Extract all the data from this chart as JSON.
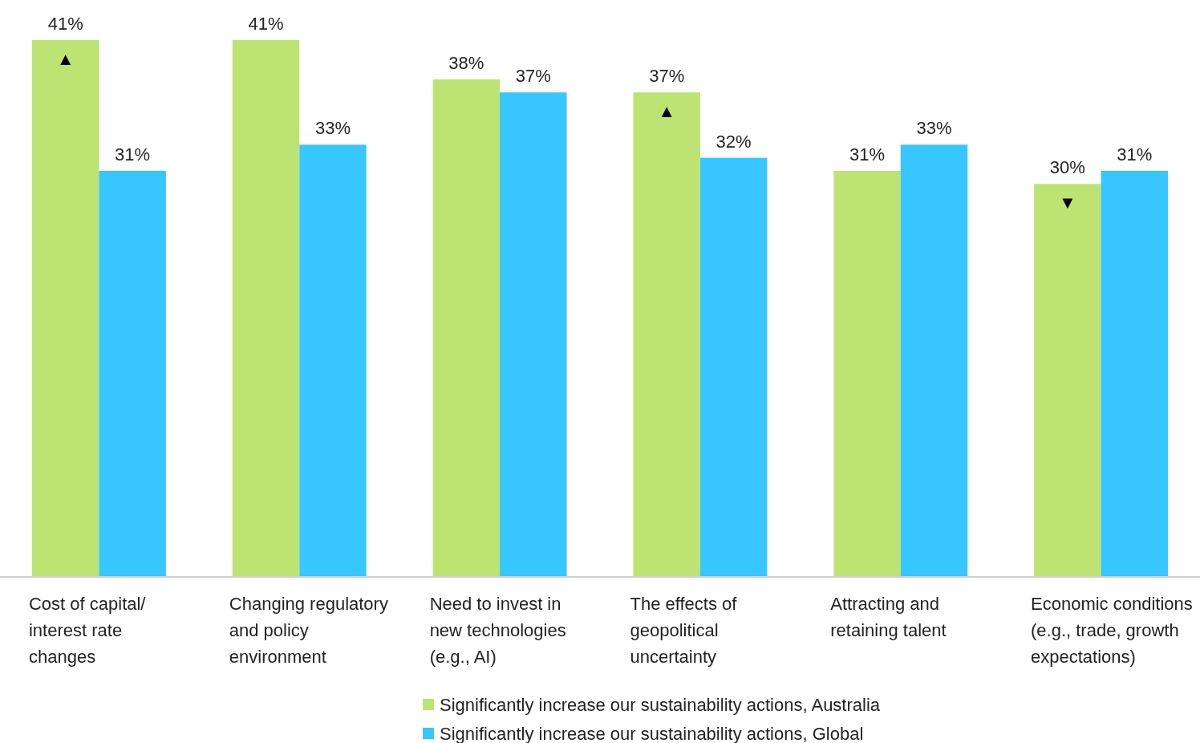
{
  "chart_data": {
    "type": "bar",
    "categories": [
      "Cost of capital/ interest rate changes",
      "Changing regulatory and policy environment",
      "Need to invest in new technologies (e.g., AI)",
      "The effects of geopolitical uncertainty",
      "Attracting and retaining talent",
      "Economic conditions (e.g., trade, growth expectations)"
    ],
    "series": [
      {
        "name": "Significantly increase our sustainability actions, Australia",
        "color": "#bde472",
        "values": [
          41,
          41,
          38,
          37,
          31,
          30
        ],
        "value_labels": [
          "41%",
          "41%",
          "38%",
          "37%",
          "31%",
          "30%"
        ]
      },
      {
        "name": "Significantly increase our sustainability actions, Global",
        "color": "#38c6fe",
        "values": [
          31,
          33,
          37,
          32,
          33,
          31
        ],
        "value_labels": [
          "31%",
          "33%",
          "37%",
          "32%",
          "33%",
          "31%"
        ]
      }
    ],
    "data_labels": true,
    "legend": "bottom",
    "annotations": [
      "▲",
      "▲",
      "▼"
    ]
  }
}
